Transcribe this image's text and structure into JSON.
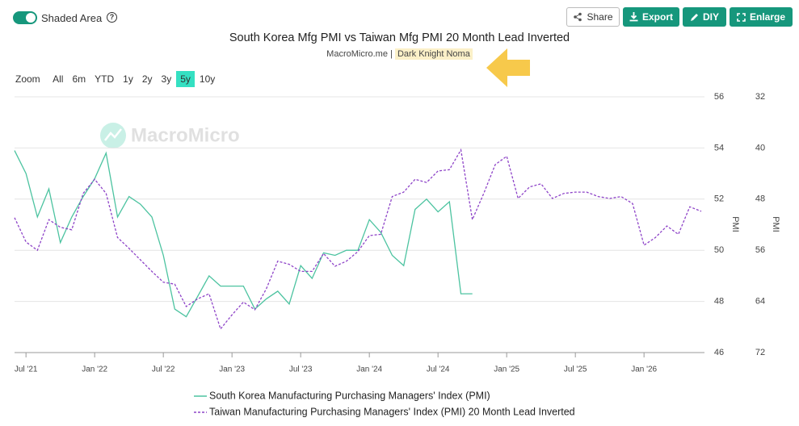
{
  "ui": {
    "toggle_label": "Shaded Area",
    "help_icon": "?",
    "buttons": [
      "Share",
      "Export",
      "DIY",
      "Enlarge"
    ],
    "zoom_label": "Zoom",
    "ranges": [
      "All",
      "6m",
      "YTD",
      "1y",
      "2y",
      "3y",
      "5y",
      "10y"
    ],
    "active_range": "5y",
    "watermark": "MacroMicro"
  },
  "chart_data": {
    "type": "line",
    "title": "South Korea Mfg PMI vs Taiwan Mfg PMI 20 Month Lead Inverted",
    "subtitle": "MacroMicro.me |",
    "author": "Dark Knight Noma",
    "ylabel": "PMI",
    "y2label": "PMI",
    "x": [
      "2021-06",
      "2021-07",
      "2021-08",
      "2021-09",
      "2021-10",
      "2021-11",
      "2021-12",
      "2022-01",
      "2022-02",
      "2022-03",
      "2022-04",
      "2022-05",
      "2022-06",
      "2022-07",
      "2022-08",
      "2022-09",
      "2022-10",
      "2022-11",
      "2022-12",
      "2023-01",
      "2023-02",
      "2023-03",
      "2023-04",
      "2023-05",
      "2023-06",
      "2023-07",
      "2023-08",
      "2023-09",
      "2023-10",
      "2023-11",
      "2023-12",
      "2024-01",
      "2024-02",
      "2024-03",
      "2024-04",
      "2024-05",
      "2024-06",
      "2024-07",
      "2024-08",
      "2024-09",
      "2024-10",
      "2024-11",
      "2024-12",
      "2025-01",
      "2025-02",
      "2025-03",
      "2025-04",
      "2025-05",
      "2025-06",
      "2025-07",
      "2025-08",
      "2025-09",
      "2025-10",
      "2025-11",
      "2025-12",
      "2026-01",
      "2026-02",
      "2026-03",
      "2026-04",
      "2026-05",
      "2026-06"
    ],
    "xlim": [
      "2021-06",
      "2026-06"
    ],
    "xticks": [
      {
        "value": "2021-07",
        "label": "Jul '21"
      },
      {
        "value": "2022-01",
        "label": "Jan '22"
      },
      {
        "value": "2022-07",
        "label": "Jul '22"
      },
      {
        "value": "2023-01",
        "label": "Jan '23"
      },
      {
        "value": "2023-07",
        "label": "Jul '23"
      },
      {
        "value": "2024-01",
        "label": "Jan '24"
      },
      {
        "value": "2024-07",
        "label": "Jul '24"
      },
      {
        "value": "2025-01",
        "label": "Jan '25"
      },
      {
        "value": "2025-07",
        "label": "Jul '25"
      },
      {
        "value": "2026-01",
        "label": "Jan '26"
      }
    ],
    "ylim": [
      46,
      56
    ],
    "yticks": [
      46,
      48,
      50,
      52,
      54,
      56
    ],
    "y2lim": [
      72,
      32
    ],
    "y2ticks": [
      32,
      40,
      48,
      56,
      64,
      72
    ],
    "grid": true,
    "series": [
      {
        "name": "South Korea Manufacturing Purchasing Managers' Index (PMI)",
        "color": "#4cc3a0",
        "dashed": false,
        "values": [
          53.9,
          53.0,
          51.3,
          52.4,
          50.3,
          51.3,
          52.1,
          52.8,
          53.8,
          51.3,
          52.1,
          51.8,
          51.3,
          49.8,
          47.7,
          47.4,
          48.2,
          49.0,
          48.6,
          48.6,
          48.6,
          47.7,
          48.1,
          48.4,
          47.9,
          49.4,
          48.9,
          49.9,
          49.8,
          50.0,
          50.0,
          51.2,
          50.7,
          49.8,
          49.4,
          51.6,
          52.0,
          51.5,
          51.9,
          48.3,
          48.3,
          null,
          null,
          null,
          null,
          null,
          null,
          null,
          null,
          null,
          null,
          null,
          null,
          null,
          null,
          null,
          null,
          null,
          null,
          null,
          null
        ]
      },
      {
        "name": "Taiwan Manufacturing Purchasing Managers' Index (PMI) 20 Month Lead Inverted",
        "color": "#8e44c8",
        "dashed": true,
        "axis": "y2",
        "values": [
          50.9,
          54.7,
          56.0,
          51.2,
          52.4,
          52.8,
          47.1,
          44.9,
          47.1,
          54.0,
          55.7,
          57.5,
          59.3,
          61.0,
          61.3,
          64.8,
          63.6,
          62.8,
          68.3,
          66.1,
          64.1,
          65.3,
          62.0,
          57.7,
          58.2,
          59.3,
          59.3,
          56.5,
          58.5,
          57.7,
          56.2,
          53.7,
          53.5,
          47.6,
          46.9,
          44.9,
          45.4,
          43.6,
          43.4,
          40.3,
          51.2,
          47.1,
          42.6,
          41.3,
          47.9,
          46.1,
          45.6,
          47.9,
          47.1,
          46.9,
          46.9,
          47.6,
          47.9,
          47.6,
          48.7,
          55.2,
          54.0,
          52.2,
          53.5,
          49.2,
          49.9
        ]
      }
    ]
  }
}
